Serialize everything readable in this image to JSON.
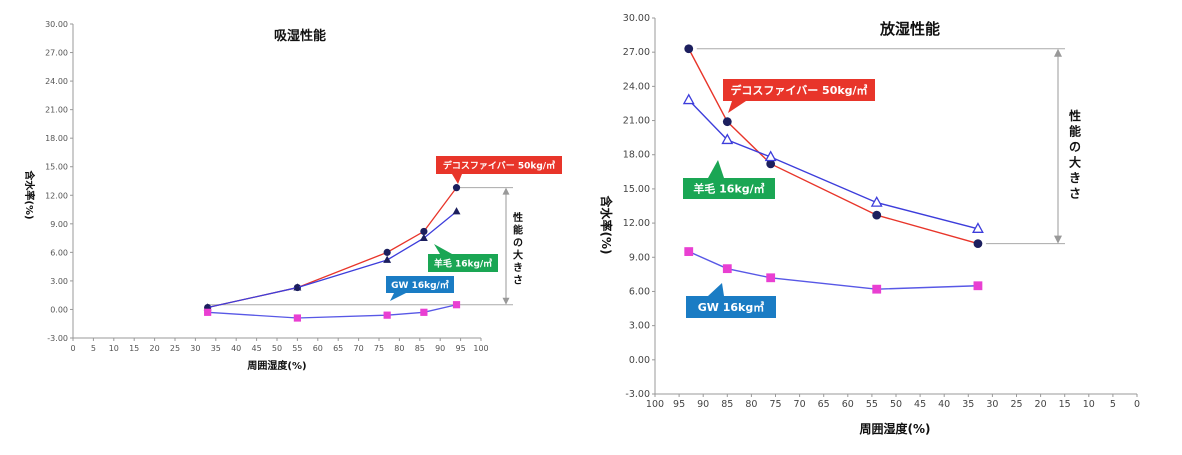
{
  "chart_data": [
    {
      "type": "line",
      "title": "吸湿性能",
      "xlabel": "周囲湿度(%)",
      "ylabel": "含水率(%)",
      "xlim": [
        0,
        100
      ],
      "ylim": [
        -3,
        30
      ],
      "x_ticks": [
        "0",
        "5",
        "10",
        "15",
        "20",
        "25",
        "30",
        "35",
        "40",
        "45",
        "50",
        "55",
        "60",
        "65",
        "70",
        "75",
        "80",
        "85",
        "90",
        "95",
        "100"
      ],
      "y_ticks": [
        "-3.00",
        "0.00",
        "3.00",
        "6.00",
        "9.00",
        "12.00",
        "15.00",
        "18.00",
        "21.00",
        "24.00",
        "27.00",
        "30.00"
      ],
      "series": [
        {
          "name": "デコスファイバー 50kg/㎥",
          "color": "#e8352a",
          "marker": "circle",
          "x": [
            33,
            55,
            77,
            86,
            94
          ],
          "y": [
            0.2,
            2.3,
            6.0,
            8.2,
            12.8
          ]
        },
        {
          "name": "羊毛 16kg/㎥",
          "color": "#3d3ddb",
          "marker": "triangle",
          "x": [
            33,
            55,
            77,
            86,
            94
          ],
          "y": [
            0.2,
            2.3,
            5.2,
            7.5,
            10.3
          ]
        },
        {
          "name": "GW 16kg/㎥",
          "color": "#5858e6",
          "marker": "square",
          "x": [
            33,
            55,
            77,
            86,
            94
          ],
          "y": [
            -0.3,
            -0.9,
            -0.6,
            -0.3,
            0.5
          ]
        }
      ],
      "performance_label": "性能の大きさ",
      "callouts": [
        {
          "text": "デコスファイバー 50kg/㎥",
          "color": "#e8352a"
        },
        {
          "text": "羊毛 16kg/㎥",
          "color": "#1aa654"
        },
        {
          "text": "GW 16kg/㎥",
          "color": "#1a7cc4"
        }
      ]
    },
    {
      "type": "line",
      "title": "放湿性能",
      "xlabel": "周囲湿度(%)",
      "ylabel": "含水率(%)",
      "xlim": [
        100,
        0
      ],
      "ylim": [
        -3,
        30
      ],
      "x_ticks": [
        "100",
        "95",
        "90",
        "85",
        "80",
        "75",
        "70",
        "65",
        "60",
        "55",
        "50",
        "45",
        "40",
        "35",
        "30",
        "25",
        "20",
        "15",
        "10",
        "5",
        "0"
      ],
      "y_ticks": [
        "-3.00",
        "0.00",
        "3.00",
        "6.00",
        "9.00",
        "12.00",
        "15.00",
        "18.00",
        "21.00",
        "24.00",
        "27.00",
        "30.00"
      ],
      "series": [
        {
          "name": "デコスファイバー 50kg/㎥",
          "color": "#e8352a",
          "marker": "circle",
          "x": [
            93,
            85,
            76,
            54,
            33
          ],
          "y": [
            27.3,
            20.9,
            17.2,
            12.7,
            10.2
          ]
        },
        {
          "name": "羊毛 16kg/㎥",
          "color": "#3d3ddb",
          "marker": "triangle-open",
          "x": [
            93,
            85,
            76,
            54,
            33
          ],
          "y": [
            22.8,
            19.3,
            17.8,
            13.8,
            11.5
          ]
        },
        {
          "name": "GW 16kg㎥",
          "color": "#5858e6",
          "marker": "square",
          "x": [
            93,
            85,
            76,
            54,
            33
          ],
          "y": [
            9.5,
            8.0,
            7.2,
            6.2,
            6.5
          ]
        }
      ],
      "performance_label": "性能の大きさ",
      "callouts": [
        {
          "text": "デコスファイバー 50kg/㎥",
          "color": "#e8352a"
        },
        {
          "text": "羊毛 16kg/㎥",
          "color": "#1aa654"
        },
        {
          "text": "GW 16kg㎥",
          "color": "#1a7cc4"
        }
      ]
    }
  ]
}
